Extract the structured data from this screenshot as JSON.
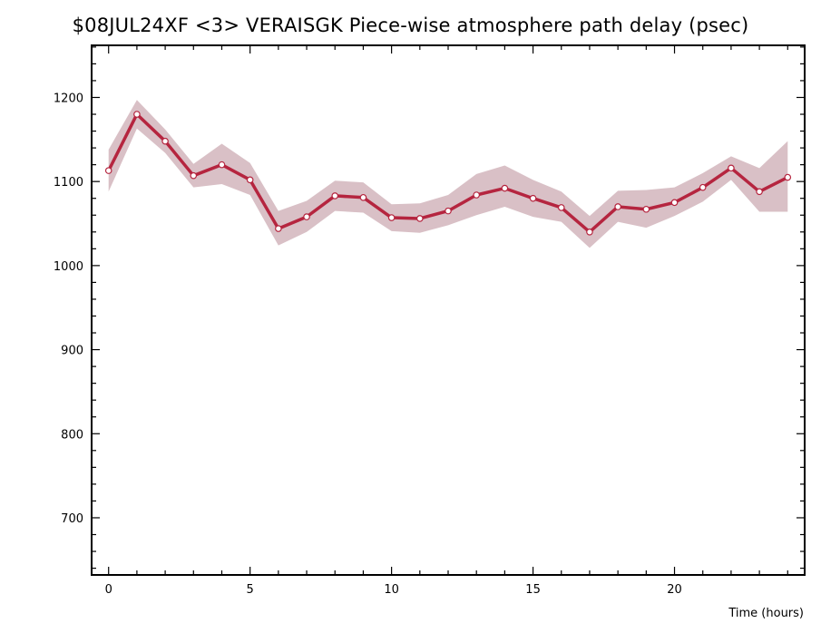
{
  "chart_data": {
    "type": "line",
    "title": "$08JUL24XF <3>  VERAISGK  Piece-wise atmosphere path delay (psec)",
    "xlabel": "Time (hours)",
    "ylabel": "",
    "xlim": [
      -0.6,
      24.6
    ],
    "ylim": [
      632,
      1262
    ],
    "x_ticks": [
      0,
      5,
      10,
      15,
      20
    ],
    "y_ticks": [
      700,
      800,
      900,
      1000,
      1100,
      1200
    ],
    "grid": false,
    "colors": {
      "line": "#b5253f",
      "band": "#d9c0c6",
      "marker_fill": "#ffffff"
    },
    "series": [
      {
        "x": [
          0,
          1,
          2,
          3,
          4,
          5,
          6,
          7,
          8,
          9,
          10,
          11,
          12,
          13,
          14,
          15,
          16,
          17,
          18,
          19,
          20,
          21,
          22,
          23,
          24
        ],
        "values": [
          1113,
          1180,
          1148,
          1107,
          1120,
          1102,
          1044,
          1058,
          1083,
          1081,
          1057,
          1056,
          1065,
          1084,
          1092,
          1080,
          1069,
          1040,
          1070,
          1067,
          1075,
          1093,
          1116,
          1088,
          1105
        ],
        "upper": [
          1138,
          1197,
          1162,
          1121,
          1145,
          1122,
          1065,
          1077,
          1101,
          1099,
          1073,
          1074,
          1084,
          1109,
          1119,
          1102,
          1088,
          1059,
          1089,
          1090,
          1093,
          1110,
          1130,
          1116,
          1148
        ],
        "lower": [
          1088,
          1163,
          1134,
          1093,
          1097,
          1084,
          1024,
          1040,
          1065,
          1063,
          1041,
          1039,
          1048,
          1060,
          1070,
          1058,
          1052,
          1021,
          1052,
          1045,
          1059,
          1076,
          1102,
          1064,
          1064
        ]
      }
    ]
  }
}
